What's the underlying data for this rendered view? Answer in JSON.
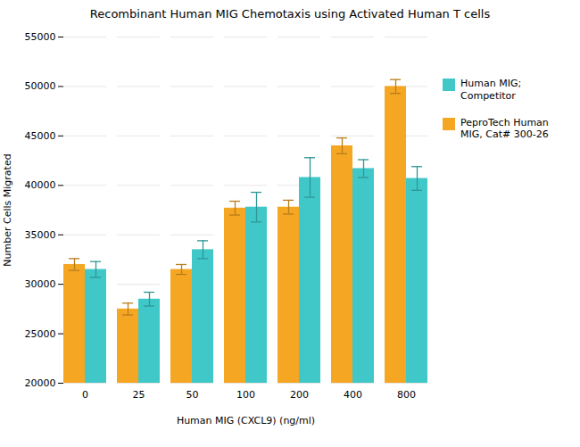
{
  "chart_data": {
    "type": "bar",
    "title": "Recombinant Human MIG Chemotaxis using Activated Human T cells",
    "xlabel": "Human MIG (CXCL9) (ng/ml)",
    "ylabel": "Number Cells Migrated",
    "categories": [
      "0",
      "25",
      "50",
      "100",
      "200",
      "400",
      "800"
    ],
    "series": [
      {
        "name": "PeproTech Human\nMIG, Cat# 300-26",
        "color": "#F5A623",
        "values": [
          32000,
          27500,
          31500,
          37700,
          37800,
          44000,
          50000
        ],
        "errors": [
          600,
          600,
          500,
          700,
          700,
          800,
          700
        ]
      },
      {
        "name": "Human MIG;\nCompetitor",
        "color": "#40C8C8",
        "values": [
          31500,
          28500,
          33500,
          37800,
          40800,
          41700,
          40700
        ],
        "errors": [
          800,
          700,
          900,
          1500,
          2000,
          900,
          1200
        ]
      }
    ],
    "ylim": [
      20000,
      55000
    ],
    "yticks": [
      20000,
      25000,
      30000,
      35000,
      40000,
      45000,
      50000,
      55000
    ],
    "grid": true,
    "legend": "right"
  }
}
